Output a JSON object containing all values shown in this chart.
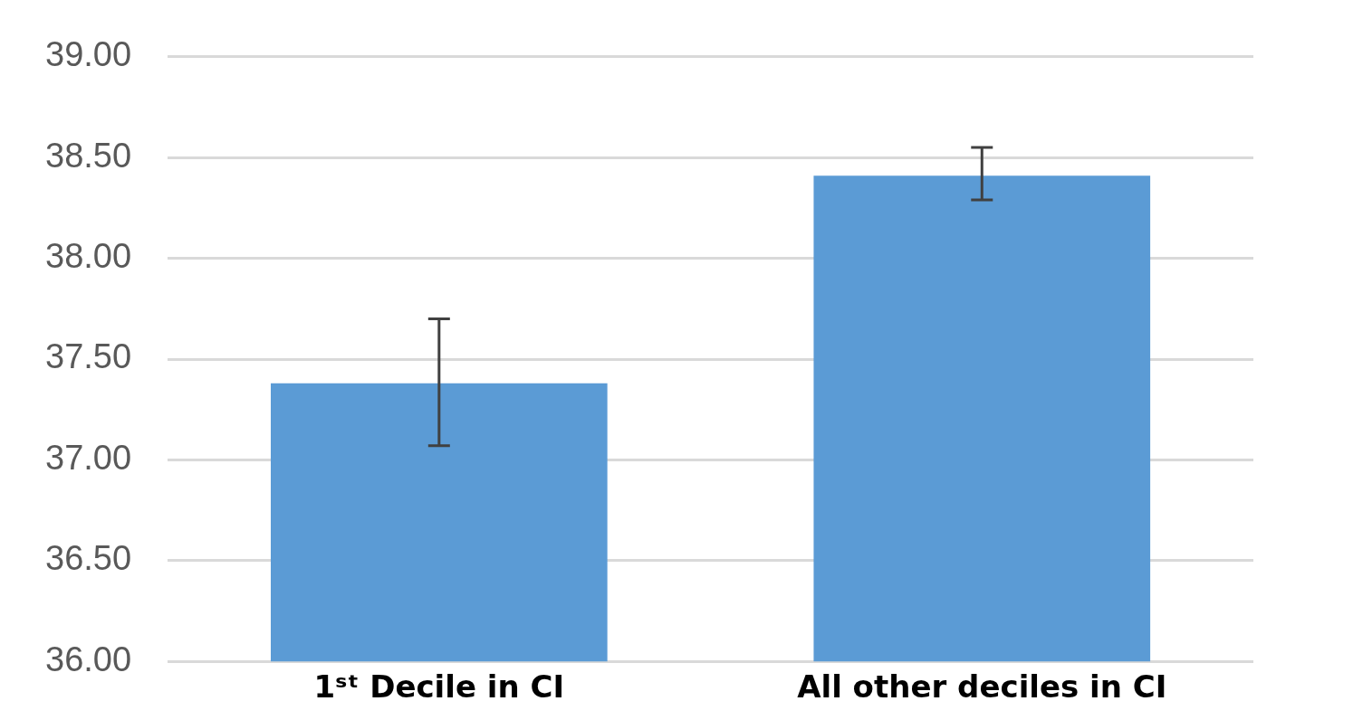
{
  "chart_data": {
    "type": "bar",
    "categories": [
      "1ˢᵗ Decile in CI",
      "All other deciles in CI"
    ],
    "values": [
      37.38,
      38.41
    ],
    "color": "#5b9bd5",
    "errors": [
      [
        37.07,
        37.7
      ],
      [
        38.29,
        38.55
      ]
    ],
    "ylim": [
      36,
      39
    ],
    "yticks": [
      {
        "value": 36,
        "label": "36.00"
      },
      {
        "value": 36.5,
        "label": "36.50"
      },
      {
        "value": 37,
        "label": "37.00"
      },
      {
        "value": 37.5,
        "label": "37.50"
      },
      {
        "value": 38,
        "label": "38.00"
      },
      {
        "value": 38.5,
        "label": "38.50"
      },
      {
        "value": 39,
        "label": "39.00"
      }
    ],
    "grid": "y",
    "legend": false
  }
}
